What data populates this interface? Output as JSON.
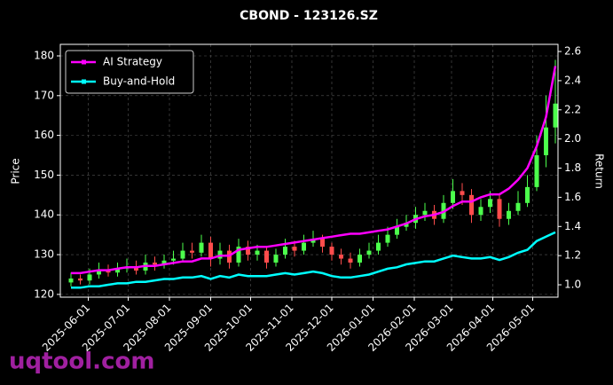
{
  "chart_data": {
    "type": "candlestick",
    "title": "CBOND - 123126.SZ",
    "ylabel": "Price",
    "y2label": "Return",
    "watermark": "uqtool.com",
    "x": [
      "2025-05-19",
      "2025-05-26",
      "2025-06-02",
      "2025-06-09",
      "2025-06-16",
      "2025-06-23",
      "2025-06-30",
      "2025-07-07",
      "2025-07-14",
      "2025-07-21",
      "2025-07-28",
      "2025-08-04",
      "2025-08-11",
      "2025-08-18",
      "2025-08-25",
      "2025-09-01",
      "2025-09-08",
      "2025-09-15",
      "2025-09-22",
      "2025-09-29",
      "2025-10-06",
      "2025-10-13",
      "2025-10-20",
      "2025-10-27",
      "2025-11-03",
      "2025-11-10",
      "2025-11-17",
      "2025-11-24",
      "2025-12-01",
      "2025-12-08",
      "2025-12-15",
      "2025-12-22",
      "2025-12-29",
      "2026-01-05",
      "2026-01-12",
      "2026-01-19",
      "2026-01-26",
      "2026-02-02",
      "2026-02-09",
      "2026-02-16",
      "2026-02-23",
      "2026-03-02",
      "2026-03-09",
      "2026-03-16",
      "2026-03-23",
      "2026-03-30",
      "2026-04-06",
      "2026-04-13",
      "2026-04-20",
      "2026-04-27",
      "2026-05-04",
      "2026-05-11",
      "2026-05-18"
    ],
    "open": [
      123,
      124,
      123.5,
      125,
      126,
      125.5,
      126.5,
      127,
      126,
      128,
      127.5,
      128.5,
      129,
      131,
      130.5,
      133,
      129,
      131,
      128,
      132,
      130,
      131,
      128,
      130,
      132,
      131,
      133,
      134,
      132,
      130,
      129,
      128,
      130,
      131,
      133,
      135,
      137,
      138,
      140,
      141,
      139,
      143,
      146,
      145,
      140,
      142,
      144,
      139,
      141,
      143,
      147,
      155,
      162
    ],
    "high": [
      125.5,
      125,
      126.5,
      128,
      127.5,
      128,
      129,
      128.5,
      130,
      129.5,
      130,
      131,
      133,
      133,
      135,
      134.5,
      133,
      132.5,
      134,
      133.5,
      132.5,
      132,
      131.5,
      134,
      133.5,
      135,
      136,
      135,
      133,
      131.5,
      130.5,
      131.5,
      133,
      135,
      137,
      139,
      140,
      142,
      143,
      142.5,
      145,
      149,
      148,
      146.5,
      144,
      146,
      145,
      143,
      146,
      150,
      160,
      170,
      179
    ],
    "low": [
      122,
      122.5,
      122.5,
      124,
      124.5,
      124.5,
      125.5,
      125,
      125,
      126,
      126.5,
      127.5,
      128,
      129,
      129.5,
      127,
      127.5,
      126.5,
      127,
      128.5,
      128.5,
      126.5,
      127,
      129,
      129.5,
      130,
      132,
      130.5,
      128.5,
      127.5,
      126.5,
      127,
      129,
      130,
      132,
      134,
      136,
      136.5,
      138.5,
      137.5,
      138,
      141.5,
      142.5,
      138,
      138.5,
      140.5,
      137,
      137.5,
      140,
      142,
      146,
      152,
      158
    ],
    "close": [
      124,
      123.5,
      125,
      126,
      125.5,
      126.5,
      127,
      126,
      128,
      127.5,
      128.5,
      129,
      131,
      130.5,
      133,
      129,
      131,
      128,
      132,
      130,
      131,
      128,
      130,
      132,
      131,
      133,
      134,
      132,
      130,
      129,
      128,
      130,
      131,
      133,
      135,
      137,
      138,
      140,
      141,
      139,
      143,
      146,
      145,
      140,
      142,
      144,
      139,
      141,
      143,
      147,
      155,
      162,
      168
    ],
    "up_color": "#4cff4c",
    "down_color": "#ff4c4c",
    "series": [
      {
        "name": "AI Strategy",
        "color": "#ff00ff",
        "axis": "y2",
        "values": [
          1.08,
          1.08,
          1.09,
          1.1,
          1.1,
          1.11,
          1.12,
          1.12,
          1.13,
          1.13,
          1.14,
          1.15,
          1.16,
          1.16,
          1.18,
          1.18,
          1.2,
          1.2,
          1.24,
          1.25,
          1.26,
          1.26,
          1.27,
          1.28,
          1.29,
          1.3,
          1.31,
          1.32,
          1.33,
          1.34,
          1.35,
          1.35,
          1.36,
          1.37,
          1.38,
          1.4,
          1.42,
          1.45,
          1.47,
          1.48,
          1.5,
          1.54,
          1.57,
          1.57,
          1.6,
          1.62,
          1.62,
          1.66,
          1.72,
          1.8,
          1.95,
          2.15,
          2.5
        ]
      },
      {
        "name": "Buy-and-Hold",
        "color": "#00ffff",
        "axis": "y2",
        "values": [
          0.98,
          0.98,
          0.99,
          0.99,
          1.0,
          1.01,
          1.01,
          1.02,
          1.02,
          1.03,
          1.04,
          1.04,
          1.05,
          1.05,
          1.06,
          1.04,
          1.06,
          1.05,
          1.07,
          1.06,
          1.06,
          1.06,
          1.07,
          1.08,
          1.07,
          1.08,
          1.09,
          1.08,
          1.06,
          1.05,
          1.05,
          1.06,
          1.07,
          1.09,
          1.11,
          1.12,
          1.14,
          1.15,
          1.16,
          1.16,
          1.18,
          1.2,
          1.19,
          1.18,
          1.18,
          1.19,
          1.17,
          1.19,
          1.22,
          1.24,
          1.3,
          1.33,
          1.36
        ]
      }
    ],
    "xlim": [
      "2025-05-11",
      "2026-05-20"
    ],
    "xticks": [
      "2025-06-01",
      "2025-07-01",
      "2025-08-01",
      "2025-09-01",
      "2025-10-01",
      "2025-11-01",
      "2025-12-01",
      "2026-01-01",
      "2026-02-01",
      "2026-03-01",
      "2026-04-01",
      "2026-05-01"
    ],
    "ylim": [
      119.3,
      182.9
    ],
    "yticks": [
      120,
      130,
      140,
      150,
      160,
      170,
      180
    ],
    "y2lim": [
      0.915,
      2.649
    ],
    "y2ticks": [
      {
        "value": 1,
        "label": "1.0"
      },
      1.2,
      1.4,
      1.6,
      1.8,
      {
        "value": 2,
        "label": "2.0"
      },
      2.2,
      2.4,
      2.6
    ],
    "grid": true,
    "legend": "upper left"
  }
}
